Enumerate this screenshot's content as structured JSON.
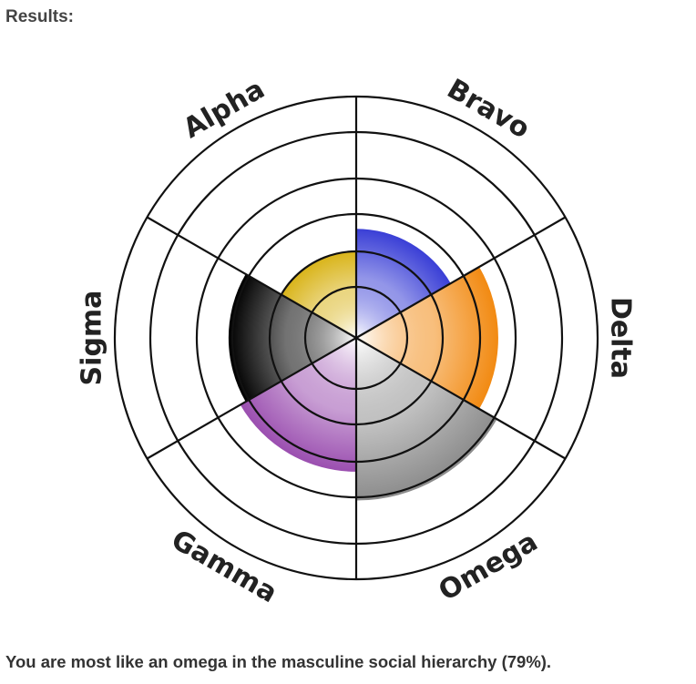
{
  "heading": "Results:",
  "summary": "You are most like an omega in the masculine social hierarchy (79%).",
  "chart_data": {
    "type": "radial",
    "categories": [
      "Bravo",
      "Delta",
      "Omega",
      "Gamma",
      "Sigma",
      "Alpha"
    ],
    "series": [
      {
        "values": [
          53,
          69,
          79,
          65,
          62,
          42
        ]
      }
    ],
    "rlim": [
      0,
      100
    ],
    "colors": {
      "Bravo": "#3a3fd6",
      "Delta": "#f28a12",
      "Omega": "#8c8c8c",
      "Gamma": "#9b4fb0",
      "Sigma": "#000000",
      "Alpha": "#d9b41a"
    },
    "grid": true
  }
}
